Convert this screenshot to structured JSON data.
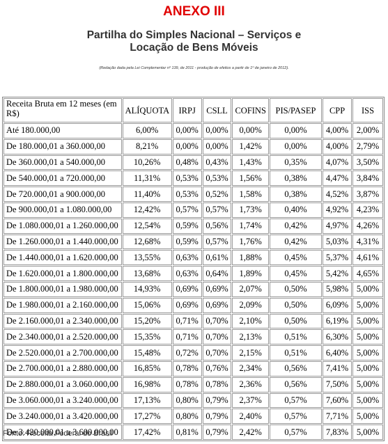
{
  "header": {
    "title": "ANEXO III",
    "subtitle": "Partilha do Simples Nacional – Serviços e Locação de Bens Móveis",
    "note": "(Redação dada pela Lei Complementar nº 139, de 2011 - produção de efeitos a partir de 1º de janeiro de 2012)."
  },
  "table": {
    "columns": [
      "Receita Bruta em 12 meses (em R$)",
      "ALÍQUOTA",
      "IRPJ",
      "CSLL",
      "COFINS",
      "PIS/PASEP",
      "CPP",
      "ISS"
    ],
    "rows": [
      [
        "Até 180.000,00",
        "6,00%",
        "0,00%",
        "0,00%",
        "0,00%",
        "0,00%",
        "4,00%",
        "2,00%"
      ],
      [
        "De 180.000,01 a 360.000,00",
        "8,21%",
        "0,00%",
        "0,00%",
        "1,42%",
        "0,00%",
        "4,00%",
        "2,79%"
      ],
      [
        "De 360.000,01 a 540.000,00",
        "10,26%",
        "0,48%",
        "0,43%",
        "1,43%",
        "0,35%",
        "4,07%",
        "3,50%"
      ],
      [
        "De 540.000,01 a 720.000,00",
        "11,31%",
        "0,53%",
        "0,53%",
        "1,56%",
        "0,38%",
        "4,47%",
        "3,84%"
      ],
      [
        "De 720.000,01 a 900.000,00",
        "11,40%",
        "0,53%",
        "0,52%",
        "1,58%",
        "0,38%",
        "4,52%",
        "3,87%"
      ],
      [
        "De 900.000,01 a 1.080.000,00",
        "12,42%",
        "0,57%",
        "0,57%",
        "1,73%",
        "0,40%",
        "4,92%",
        "4,23%"
      ],
      [
        "De 1.080.000,01 a 1.260.000,00",
        "12,54%",
        "0,59%",
        "0,56%",
        "1,74%",
        "0,42%",
        "4,97%",
        "4,26%"
      ],
      [
        "De 1.260.000,01 a 1.440.000,00",
        "12,68%",
        "0,59%",
        "0,57%",
        "1,76%",
        "0,42%",
        "5,03%",
        "4,31%"
      ],
      [
        "De 1.440.000,01 a 1.620.000,00",
        "13,55%",
        "0,63%",
        "0,61%",
        "1,88%",
        "0,45%",
        "5,37%",
        "4,61%"
      ],
      [
        "De 1.620.000,01 a 1.800.000,00",
        "13,68%",
        "0,63%",
        "0,64%",
        "1,89%",
        "0,45%",
        "5,42%",
        "4,65%"
      ],
      [
        "De 1.800.000,01 a 1.980.000,00",
        "14,93%",
        "0,69%",
        "0,69%",
        "2,07%",
        "0,50%",
        "5,98%",
        "5,00%"
      ],
      [
        "De 1.980.000,01 a 2.160.000,00",
        "15,06%",
        "0,69%",
        "0,69%",
        "2,09%",
        "0,50%",
        "6,09%",
        "5,00%"
      ],
      [
        "De 2.160.000,01 a 2.340.000,00",
        "15,20%",
        "0,71%",
        "0,70%",
        "2,10%",
        "0,50%",
        "6,19%",
        "5,00%"
      ],
      [
        "De 2.340.000,01 a 2.520.000,00",
        "15,35%",
        "0,71%",
        "0,70%",
        "2,13%",
        "0,51%",
        "6,30%",
        "5,00%"
      ],
      [
        "De 2.520.000,01 a 2.700.000,00",
        "15,48%",
        "0,72%",
        "0,70%",
        "2,15%",
        "0,51%",
        "6,40%",
        "5,00%"
      ],
      [
        "De 2.700.000,01 a 2.880.000,00",
        "16,85%",
        "0,78%",
        "0,76%",
        "2,34%",
        "0,56%",
        "7,41%",
        "5,00%"
      ],
      [
        "De 2.880.000,01 a 3.060.000,00",
        "16,98%",
        "0,78%",
        "0,78%",
        "2,36%",
        "0,56%",
        "7,50%",
        "5,00%"
      ],
      [
        "De 3.060.000,01 a 3.240.000,00",
        "17,13%",
        "0,80%",
        "0,79%",
        "2,37%",
        "0,57%",
        "7,60%",
        "5,00%"
      ],
      [
        "De 3.240.000,01 a 3.420.000,00",
        "17,27%",
        "0,80%",
        "0,79%",
        "2,40%",
        "0,57%",
        "7,71%",
        "5,00%"
      ],
      [
        "De 3.420.000,01 a 3.600.000,00",
        "17,42%",
        "0,81%",
        "0,79%",
        "2,42%",
        "0,57%",
        "7,83%",
        "5,00%"
      ]
    ]
  },
  "footer": "Fonte: Receita Federal do Brasil"
}
